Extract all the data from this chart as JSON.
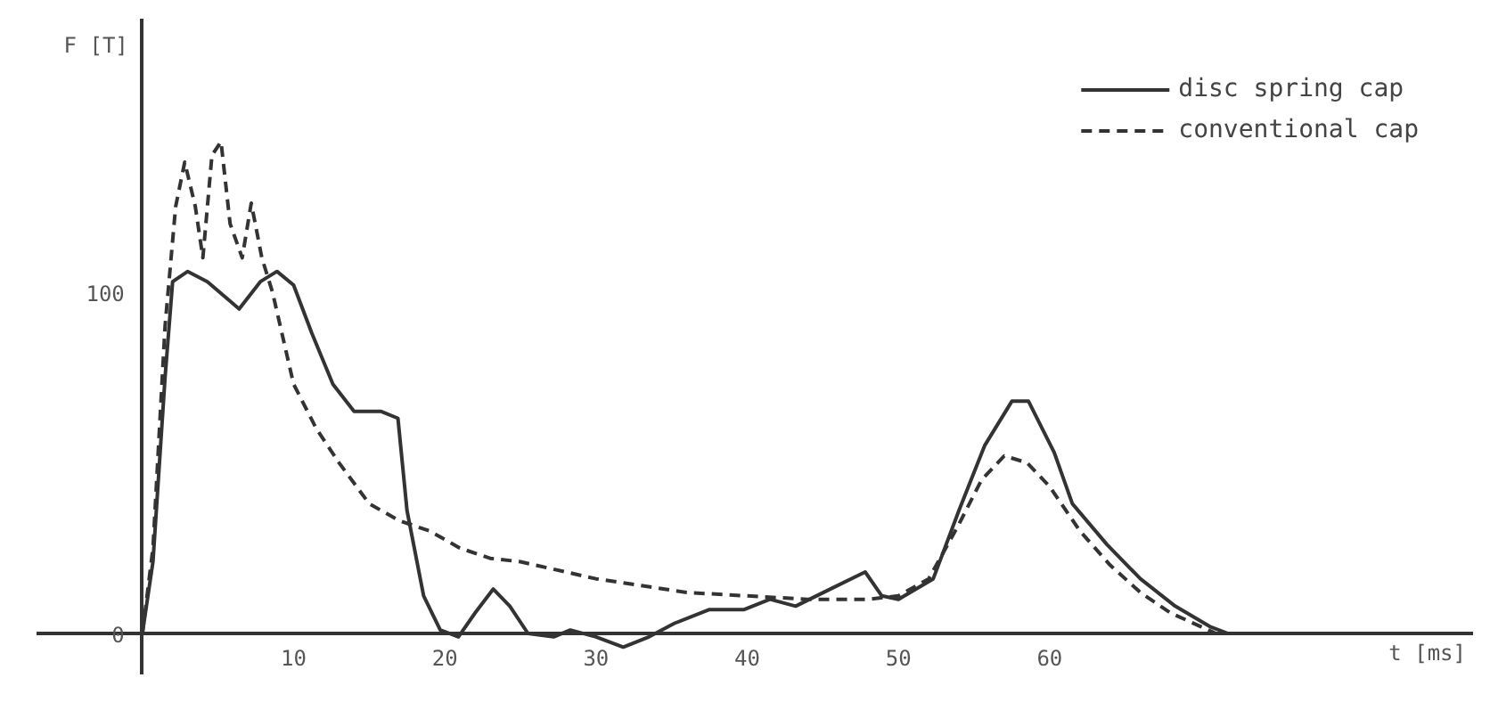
{
  "chart_data": {
    "type": "line",
    "xlabel": "t [ms]",
    "ylabel": "F [T]",
    "xlim": [
      -7,
      88
    ],
    "ylim": [
      -12,
      180
    ],
    "xticks": [
      10,
      20,
      30,
      40,
      50,
      60
    ],
    "yticks": [
      0,
      100
    ],
    "grid": false,
    "legend": "top right",
    "series": [
      {
        "name": "disc spring cap",
        "color": "#333333",
        "line_style": "solid",
        "x": [
          0,
          0.7,
          1.5,
          2,
          3,
          4.3,
          6.4,
          7.8,
          8.9,
          10,
          11.2,
          12.6,
          14,
          15.8,
          16.9,
          17.5,
          18.6,
          19.7,
          20.9,
          22,
          23.2,
          24.3,
          25.5,
          27.2,
          28.3,
          30,
          31.8,
          33.5,
          35.2,
          37.5,
          39.8,
          41.5,
          43.2,
          45.5,
          47.8,
          48.9,
          50,
          52.3,
          54,
          55.7,
          57.5,
          58.6,
          60.3,
          61.5,
          63.8,
          66,
          68.3,
          70.6,
          71.8
        ],
        "values": [
          0,
          21,
          75,
          103,
          106,
          103,
          95,
          103,
          106,
          102,
          88,
          73,
          65,
          65,
          63,
          36,
          11,
          1,
          -1,
          6,
          13,
          8,
          0,
          -1,
          1,
          -1,
          -4,
          -1,
          3,
          7,
          7,
          10,
          8,
          13,
          18,
          11,
          10,
          16,
          36,
          55,
          68,
          68,
          53,
          38,
          26,
          16,
          8,
          2,
          0
        ]
      },
      {
        "name": "conventional cap",
        "color": "#333333",
        "line_style": "dashed",
        "x": [
          0,
          0.7,
          1.5,
          2.2,
          2.8,
          3.5,
          4,
          4.6,
          5.2,
          5.8,
          6.6,
          7.2,
          7.9,
          8.6,
          10,
          11.5,
          13,
          15,
          17,
          19,
          21,
          23,
          25,
          27,
          30,
          33,
          36,
          40,
          44,
          48,
          50,
          52,
          54,
          55.5,
          57,
          58.5,
          60,
          62,
          64,
          66,
          68,
          70,
          71
        ],
        "values": [
          0,
          25,
          90,
          125,
          138,
          125,
          110,
          140,
          144,
          120,
          110,
          126,
          110,
          100,
          73,
          60,
          50,
          38,
          33,
          30,
          25,
          22,
          21,
          19,
          16,
          14,
          12,
          11,
          10,
          10,
          11,
          16,
          32,
          45,
          52,
          50,
          43,
          30,
          20,
          12,
          6,
          2,
          0
        ]
      }
    ]
  }
}
